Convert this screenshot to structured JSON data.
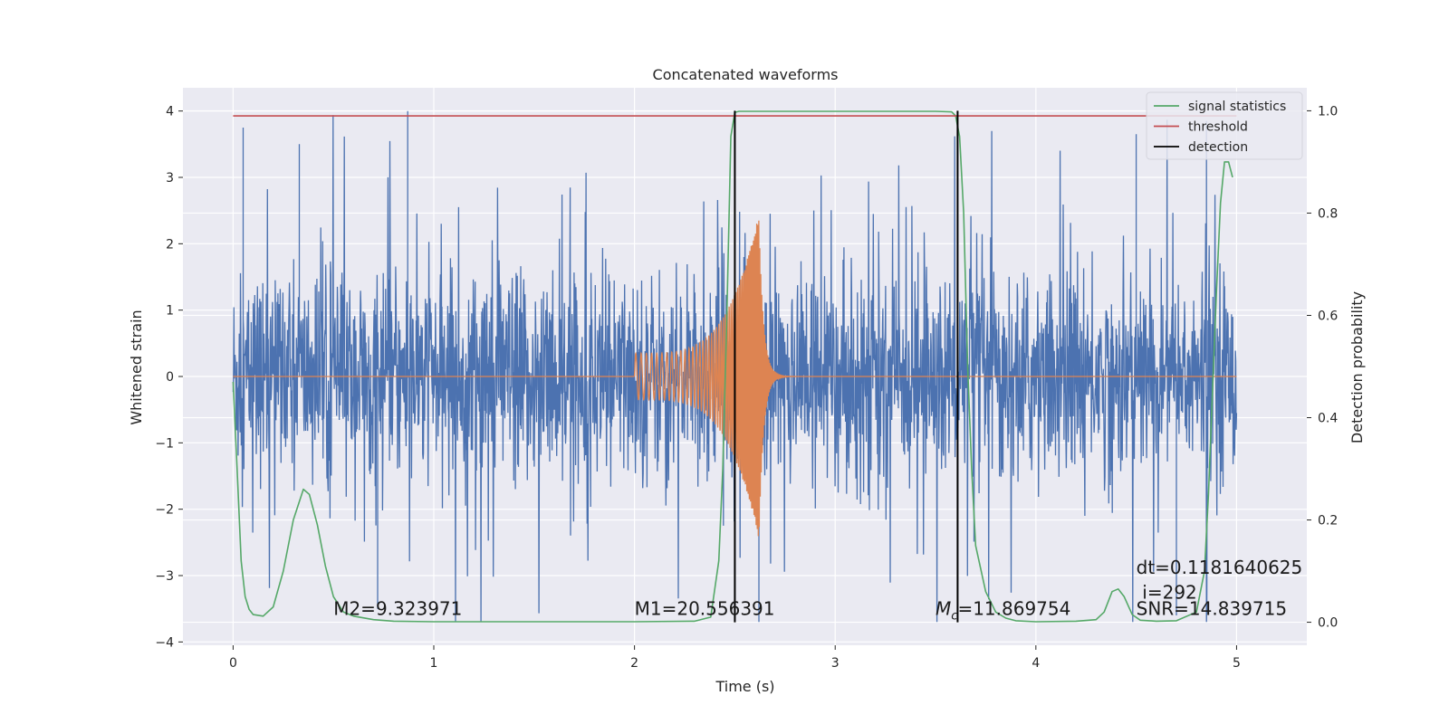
{
  "chart_data": {
    "type": "line",
    "title": "Concatenated waveforms",
    "xlabel": "Time (s)",
    "ylabel": "Whitened strain",
    "y2label": "Detection probability",
    "xlim": [
      -0.25,
      5.35
    ],
    "ylim": [
      -4.05,
      4.35
    ],
    "y2lim": [
      -0.045,
      1.045
    ],
    "xticks": [
      0,
      1,
      2,
      3,
      4,
      5
    ],
    "yticks": [
      4,
      3,
      2,
      1,
      0,
      -1,
      -2,
      -3,
      -4
    ],
    "y2ticks": [
      1.0,
      0.8,
      0.6,
      0.4,
      0.2,
      0.0
    ],
    "grid": true,
    "legend_position": "top-right",
    "colors": {
      "noise": "#4c72b0",
      "template": "#dd8452",
      "signal_statistics": "#55a868",
      "threshold": "#c44e52",
      "detection": "#000000",
      "background": "#eaeaf2",
      "grid": "#ffffff"
    },
    "series": [
      {
        "name": "signal statistics",
        "axis": "right",
        "x": [
          0,
          0.02,
          0.04,
          0.06,
          0.08,
          0.1,
          0.15,
          0.2,
          0.25,
          0.3,
          0.35,
          0.38,
          0.42,
          0.46,
          0.5,
          0.55,
          0.6,
          0.7,
          0.8,
          1.0,
          1.5,
          2.0,
          2.3,
          2.38,
          2.42,
          2.44,
          2.46,
          2.48,
          2.5,
          2.52,
          2.55,
          3.5,
          3.58,
          3.6,
          3.62,
          3.64,
          3.66,
          3.68,
          3.7,
          3.75,
          3.8,
          3.85,
          3.9,
          4.0,
          4.2,
          4.3,
          4.34,
          4.38,
          4.41,
          4.44,
          4.48,
          4.52,
          4.6,
          4.7,
          4.8,
          4.84,
          4.86,
          4.88,
          4.9,
          4.92,
          4.94,
          4.96,
          4.98
        ],
        "y": [
          0.47,
          0.3,
          0.12,
          0.05,
          0.025,
          0.015,
          0.012,
          0.03,
          0.1,
          0.2,
          0.26,
          0.25,
          0.19,
          0.11,
          0.05,
          0.02,
          0.012,
          0.005,
          0.002,
          0.001,
          0.001,
          0.001,
          0.002,
          0.01,
          0.12,
          0.3,
          0.6,
          0.95,
          0.997,
          0.999,
          0.999,
          0.999,
          0.998,
          0.99,
          0.95,
          0.8,
          0.5,
          0.3,
          0.15,
          0.06,
          0.02,
          0.008,
          0.003,
          0.001,
          0.002,
          0.005,
          0.02,
          0.06,
          0.065,
          0.05,
          0.015,
          0.004,
          0.002,
          0.003,
          0.02,
          0.1,
          0.25,
          0.45,
          0.65,
          0.82,
          0.9,
          0.9,
          0.87
        ]
      },
      {
        "name": "threshold",
        "axis": "right",
        "x": [
          0,
          5
        ],
        "y": [
          0.99,
          0.99
        ]
      },
      {
        "name": "detection",
        "type": "vline",
        "x": [
          2.5,
          3.61
        ]
      },
      {
        "axis": "left",
        "kind": "noise",
        "x_range": [
          0,
          5
        ],
        "envelope": 0.9,
        "spike_max": 4.0,
        "spike_min": -3.7
      },
      {
        "axis": "left",
        "kind": "chirp",
        "x_start": 2.0,
        "x_peak": 2.62,
        "x_ringdown_end": 3.0,
        "amp_start": 0.35,
        "amp_peak": 2.45
      }
    ],
    "legend": [
      {
        "label": "signal statistics",
        "color": "#55a868"
      },
      {
        "label": "threshold",
        "color": "#c44e52"
      },
      {
        "label": "detection",
        "color": "#000000"
      }
    ],
    "annotations": [
      {
        "text": "M2=9.323971",
        "x": 0.5,
        "y": -3.5
      },
      {
        "text": "M1=20.556391",
        "x": 2.0,
        "y": -3.5
      },
      {
        "text_math_symbol": "M",
        "text_subscript": "c",
        "text": "=11.869754",
        "x": 3.5,
        "y": -3.5
      },
      {
        "text": "dt=0.1181640625",
        "x": 4.5,
        "y": -2.88
      },
      {
        "text": "i=292",
        "x": 4.53,
        "y": -3.25
      },
      {
        "text": "SNR=14.839715",
        "x": 4.5,
        "y": -3.5
      }
    ]
  }
}
